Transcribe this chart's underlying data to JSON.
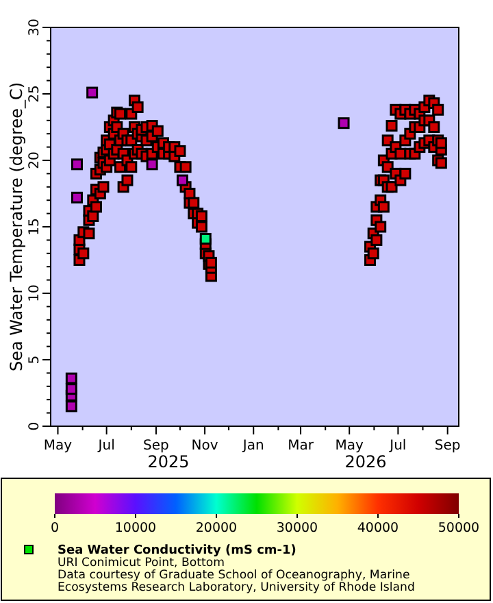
{
  "chart_data": {
    "type": "scatter",
    "ylabel": "Sea Water Temperature (degree_C)",
    "clabel": "Sea Water Conductivity (mS cm-1)",
    "marker": "square",
    "grid": false,
    "xlim": [
      "2025-04-22",
      "2026-09-15"
    ],
    "xticks": [
      {
        "value": "2025-05-01",
        "label": "May"
      },
      {
        "value": "2025-06-01",
        "label": null
      },
      {
        "value": "2025-07-01",
        "label": "Jul"
      },
      {
        "value": "2025-08-01",
        "label": null
      },
      {
        "value": "2025-09-01",
        "label": "Sep"
      },
      {
        "value": "2025-10-01",
        "label": null
      },
      {
        "value": "2025-11-01",
        "label": "Nov"
      },
      {
        "value": "2025-12-01",
        "label": null
      },
      {
        "value": "2026-01-01",
        "label": "Jan"
      },
      {
        "value": "2026-02-01",
        "label": null
      },
      {
        "value": "2026-03-01",
        "label": "Mar"
      },
      {
        "value": "2026-04-01",
        "label": null
      },
      {
        "value": "2026-05-01",
        "label": "May"
      },
      {
        "value": "2026-06-01",
        "label": null
      },
      {
        "value": "2026-07-01",
        "label": "Jul"
      },
      {
        "value": "2026-08-01",
        "label": null
      },
      {
        "value": "2026-09-01",
        "label": "Sep"
      }
    ],
    "ylim": [
      0,
      30
    ],
    "yticks": [
      0,
      {
        "value": 1,
        "label": null
      },
      {
        "value": 2,
        "label": null
      },
      {
        "value": 3,
        "label": null
      },
      {
        "value": 4,
        "label": null
      },
      5,
      {
        "value": 6,
        "label": null
      },
      {
        "value": 7,
        "label": null
      },
      {
        "value": 8,
        "label": null
      },
      {
        "value": 9,
        "label": null
      },
      10,
      {
        "value": 11,
        "label": null
      },
      {
        "value": 12,
        "label": null
      },
      {
        "value": 13,
        "label": null
      },
      {
        "value": 14,
        "label": null
      },
      15,
      {
        "value": 16,
        "label": null
      },
      {
        "value": 17,
        "label": null
      },
      {
        "value": 18,
        "label": null
      },
      {
        "value": 19,
        "label": null
      },
      20,
      {
        "value": 21,
        "label": null
      },
      {
        "value": 22,
        "label": null
      },
      {
        "value": 23,
        "label": null
      },
      {
        "value": 24,
        "label": null
      },
      25,
      {
        "value": 26,
        "label": null
      },
      {
        "value": 27,
        "label": null
      },
      {
        "value": 28,
        "label": null
      },
      {
        "value": 29,
        "label": null
      },
      30
    ],
    "clim": [
      0,
      50000
    ],
    "cticks": [
      0,
      10000,
      20000,
      30000,
      40000,
      50000
    ],
    "x": [
      "2025-05-28",
      "2025-05-28",
      "2025-05-28",
      "2025-06-02",
      "2025-06-02",
      "2025-06-09",
      "2025-06-09",
      "2025-06-09",
      "2025-06-14",
      "2025-06-14",
      "2025-06-18",
      "2025-06-18",
      "2025-06-18",
      "2025-06-23",
      "2025-06-23",
      "2025-06-23",
      "2025-06-27",
      "2025-06-27",
      "2025-06-27",
      "2025-07-01",
      "2025-07-01",
      "2025-07-01",
      "2025-07-05",
      "2025-07-05",
      "2025-07-05",
      "2025-07-10",
      "2025-07-10",
      "2025-07-10",
      "2025-07-14",
      "2025-07-14",
      "2025-07-14",
      "2025-07-18",
      "2025-07-18",
      "2025-07-18",
      "2025-07-22",
      "2025-07-22",
      "2025-07-22",
      "2025-07-27",
      "2025-07-27",
      "2025-07-27",
      "2025-08-01",
      "2025-08-01",
      "2025-08-01",
      "2025-08-05",
      "2025-08-05",
      "2025-08-05",
      "2025-08-09",
      "2025-08-09",
      "2025-08-09",
      "2025-08-14",
      "2025-08-14",
      "2025-08-14",
      "2025-08-20",
      "2025-08-20",
      "2025-08-20",
      "2025-08-27",
      "2025-08-27",
      "2025-08-27",
      "2025-09-03",
      "2025-09-03",
      "2025-09-10",
      "2025-09-10",
      "2025-09-17",
      "2025-09-17",
      "2025-09-24",
      "2025-09-24",
      "2025-10-01",
      "2025-10-01",
      "2025-10-08",
      "2025-10-08",
      "2025-10-13",
      "2025-10-13",
      "2025-10-18",
      "2025-10-18",
      "2025-10-23",
      "2025-10-23",
      "2025-10-28",
      "2025-10-28",
      "2025-11-02",
      "2025-11-02",
      "2025-11-06",
      "2025-11-06",
      "2025-11-09",
      "2025-11-09",
      "2025-11-09",
      "2026-05-27",
      "2026-05-27",
      "2026-05-31",
      "2026-05-31",
      "2026-06-04",
      "2026-06-04",
      "2026-06-04",
      "2026-06-09",
      "2026-06-09",
      "2026-06-09",
      "2026-06-13",
      "2026-06-13",
      "2026-06-13",
      "2026-06-18",
      "2026-06-18",
      "2026-06-18",
      "2026-06-23",
      "2026-06-23",
      "2026-06-23",
      "2026-06-28",
      "2026-06-28",
      "2026-06-28",
      "2026-07-04",
      "2026-07-04",
      "2026-07-04",
      "2026-07-10",
      "2026-07-10",
      "2026-07-10",
      "2026-07-16",
      "2026-07-16",
      "2026-07-16",
      "2026-07-22",
      "2026-07-22",
      "2026-07-22",
      "2026-07-28",
      "2026-07-28",
      "2026-07-28",
      "2026-08-03",
      "2026-08-03",
      "2026-08-03",
      "2026-08-09",
      "2026-08-09",
      "2026-08-09",
      "2026-08-15",
      "2026-08-15",
      "2026-08-15",
      "2026-08-20",
      "2026-08-20",
      "2026-08-20",
      "2026-08-24",
      "2026-08-24",
      "2026-08-24",
      "2025-05-18",
      "2025-05-18",
      "2025-05-18",
      "2025-05-18",
      "2025-05-25",
      "2025-05-25",
      "2025-06-13",
      "2025-08-27",
      "2025-10-04",
      "2025-11-02",
      "2026-04-24"
    ],
    "values": [
      12.5,
      13.3,
      14.0,
      13.0,
      14.6,
      14.5,
      15.5,
      16.2,
      15.8,
      17.0,
      16.5,
      17.8,
      19.0,
      17.5,
      19.3,
      20.2,
      18.0,
      19.8,
      20.6,
      19.5,
      20.8,
      21.5,
      20.0,
      21.2,
      22.5,
      20.5,
      22.0,
      23.0,
      20.8,
      22.5,
      23.6,
      19.5,
      21.5,
      23.5,
      18.0,
      20.5,
      22.0,
      18.5,
      20.0,
      21.5,
      19.5,
      21.5,
      23.5,
      20.5,
      22.5,
      24.5,
      20.8,
      22.0,
      24.0,
      20.5,
      21.8,
      22.3,
      20.3,
      21.5,
      22.5,
      20.5,
      21.8,
      22.6,
      21.0,
      22.2,
      20.5,
      21.3,
      20.5,
      21.0,
      20.3,
      21.0,
      19.5,
      20.7,
      18.0,
      19.5,
      16.8,
      17.5,
      16.0,
      16.8,
      15.3,
      16.0,
      15.0,
      15.8,
      13.0,
      13.7,
      12.2,
      12.8,
      11.3,
      11.9,
      12.3,
      12.5,
      13.5,
      13.0,
      14.5,
      14.0,
      15.5,
      16.5,
      15.0,
      17.0,
      18.5,
      16.5,
      18.5,
      20.0,
      18.0,
      19.5,
      21.5,
      18.0,
      20.5,
      22.6,
      19.0,
      21.0,
      23.8,
      18.5,
      20.5,
      23.5,
      19.0,
      21.5,
      23.8,
      20.5,
      22.0,
      23.5,
      20.5,
      22.5,
      23.8,
      21.0,
      22.5,
      23.5,
      21.3,
      23.0,
      24.0,
      21.5,
      23.0,
      24.5,
      21.0,
      22.5,
      24.3,
      20.0,
      21.5,
      23.8,
      19.8,
      20.8,
      21.3,
      1.5,
      2.3,
      2.8,
      3.6,
      17.2,
      19.7,
      25.1,
      19.7,
      18.5,
      14.1,
      22.8
    ],
    "cvalues": [
      45000,
      45000,
      45000,
      45000,
      45000,
      45000,
      45000,
      45000,
      45000,
      45000,
      45000,
      45000,
      45000,
      45000,
      45000,
      45000,
      45000,
      45000,
      45000,
      45000,
      45000,
      45000,
      45000,
      45000,
      45000,
      45000,
      45000,
      45000,
      45000,
      45000,
      45000,
      45000,
      45000,
      45000,
      45000,
      45000,
      45000,
      45000,
      45000,
      45000,
      45000,
      45000,
      45000,
      45000,
      45000,
      45000,
      45000,
      45000,
      45000,
      45000,
      45000,
      45000,
      45000,
      45000,
      45000,
      45000,
      45000,
      45000,
      45000,
      45000,
      45000,
      45000,
      45000,
      45000,
      45000,
      45000,
      45000,
      45000,
      45000,
      45000,
      45000,
      45000,
      45000,
      45000,
      45000,
      45000,
      45000,
      45000,
      45000,
      45000,
      45000,
      45000,
      45000,
      45000,
      45000,
      45000,
      45000,
      45000,
      45000,
      45000,
      45000,
      45000,
      45000,
      45000,
      45000,
      45000,
      45000,
      45000,
      45000,
      45000,
      45000,
      45000,
      45000,
      45000,
      45000,
      45000,
      45000,
      45000,
      45000,
      45000,
      45000,
      45000,
      45000,
      45000,
      45000,
      45000,
      45000,
      45000,
      45000,
      45000,
      45000,
      45000,
      45000,
      45000,
      45000,
      45000,
      45000,
      45000,
      45000,
      45000,
      45000,
      45000,
      45000,
      45000,
      45000,
      45000,
      45000,
      3000,
      3000,
      3000,
      3000,
      3000,
      3000,
      3000,
      3000,
      3000,
      22000,
      3000
    ],
    "annotations": [
      "2025",
      "2026",
      "URI Conimicut Point, Bottom",
      "Data courtesy of Graduate School of Oceanography, Marine",
      "Ecosystems Research Laboratory, University of Rhode Island"
    ]
  }
}
